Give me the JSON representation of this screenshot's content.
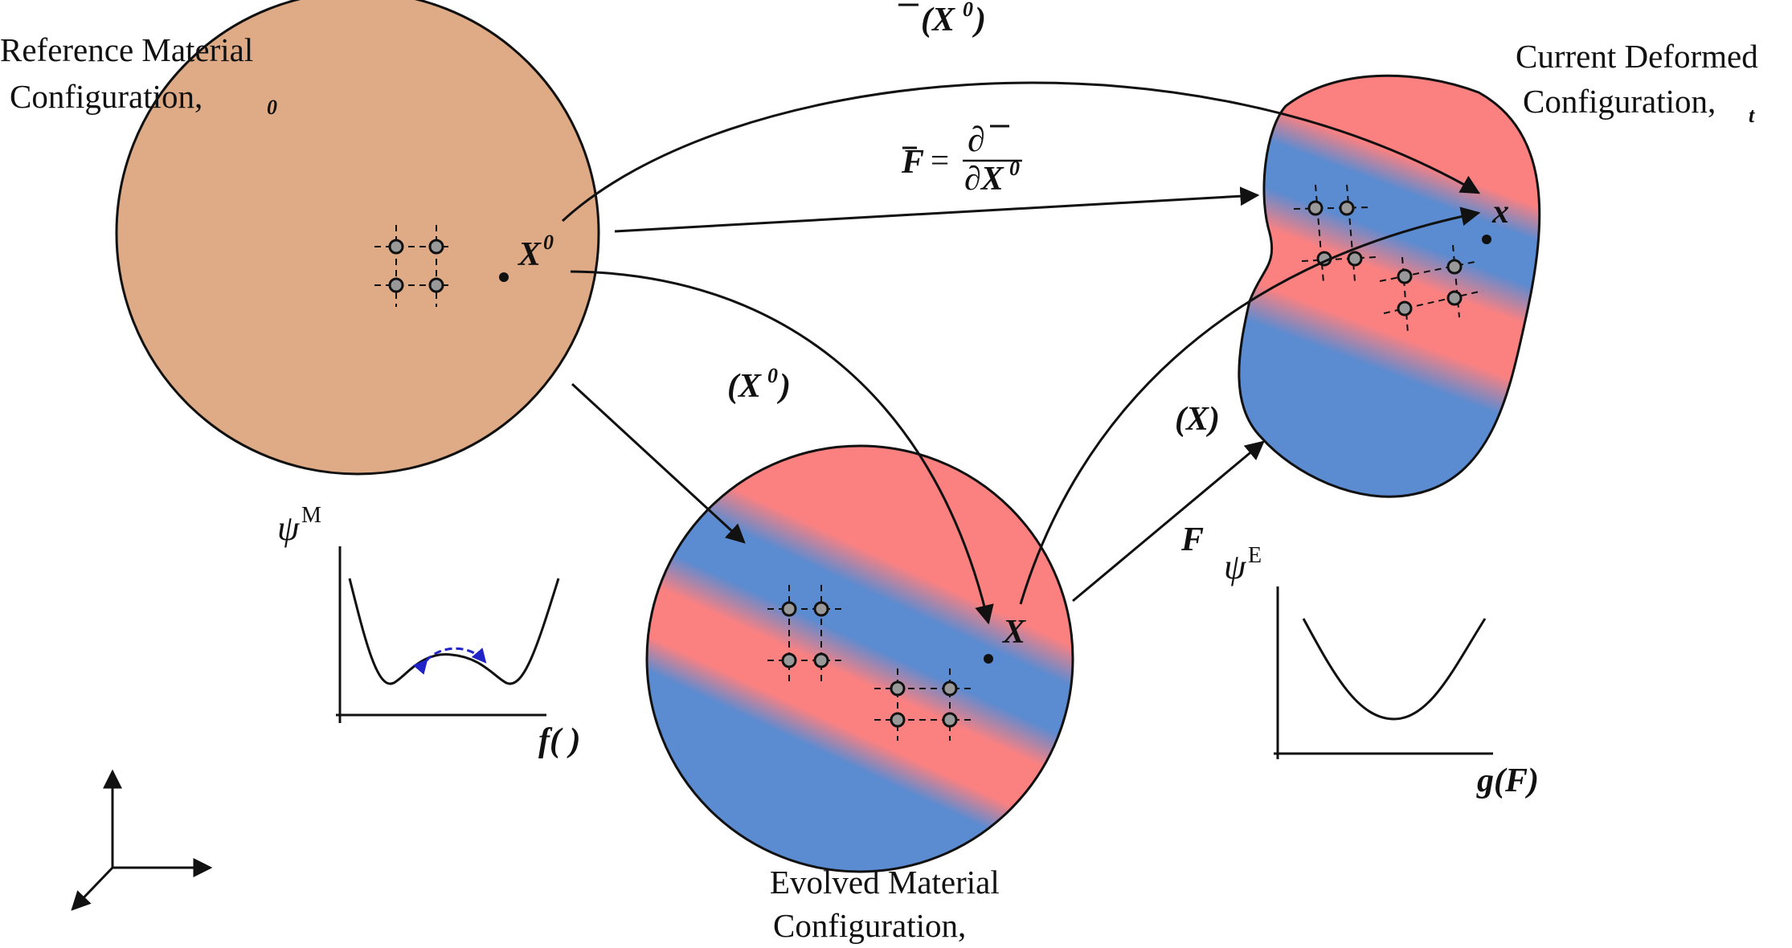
{
  "colors": {
    "reference_fill": "#dfab86",
    "stripe_red": "#fb8181",
    "stripe_blue": "#5b8bd1",
    "node_fill": "#999999",
    "well_arrow": "#1f23c8",
    "stroke": "#111111"
  },
  "reference": {
    "label_line1": "Reference Material",
    "label_line2": "Configuration,",
    "sub": "0",
    "point": "X",
    "point_sup": "0"
  },
  "current": {
    "label_line1": "Current Deformed",
    "label_line2": "Configuration,",
    "sub": "t",
    "point": "x"
  },
  "evolved": {
    "label_line1": "Evolved Material",
    "label_line2": "Configuration,",
    "point": "X"
  },
  "maps": {
    "top_map": "(X",
    "top_map_sup": "0",
    "top_map_close": ")",
    "fbar_lhs": "F",
    "fbar_eq": "=",
    "fbar_num": "∂",
    "fbar_den": "∂X",
    "fbar_den_sup": "0",
    "mid_map": "(X",
    "mid_map_sup": "0",
    "mid_map_close": ")",
    "right_map": "(X)",
    "f_label": "F"
  },
  "plots": {
    "left_ylabel": "ψ",
    "left_ylabel_sup": "M",
    "left_xlabel": "f( )",
    "right_ylabel": "ψ",
    "right_ylabel_sup": "E",
    "right_xlabel": "g(F)"
  }
}
